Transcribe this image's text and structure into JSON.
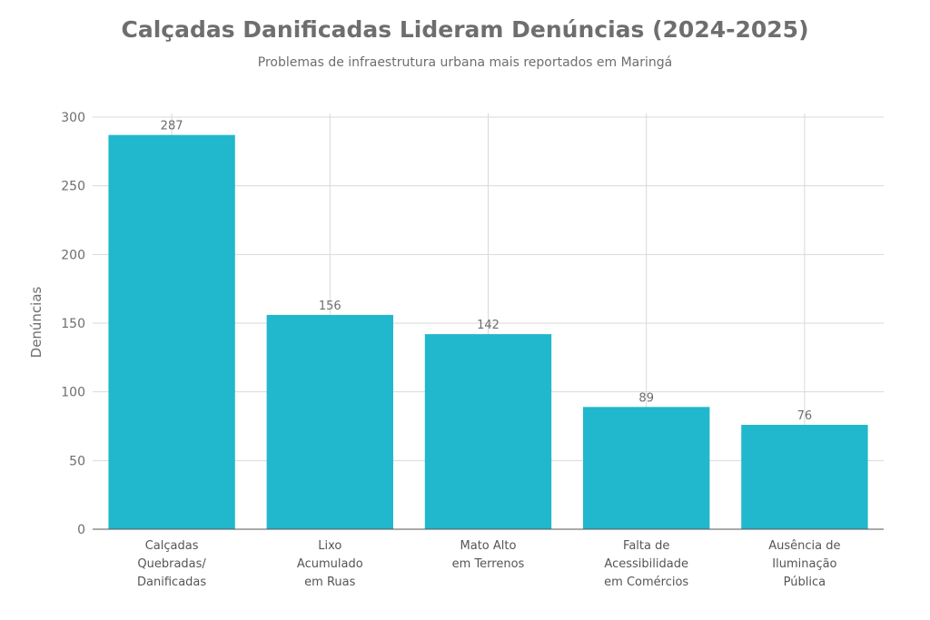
{
  "chart_data": {
    "type": "bar",
    "title": "Calçadas Danificadas Lideram Denúncias (2024-2025)",
    "subtitle": "Problemas de infraestrutura urbana mais reportados em Maringá",
    "ylabel": "Denúncias",
    "xlabel": "",
    "ylim": [
      0,
      300
    ],
    "yticks": [
      0,
      50,
      100,
      150,
      200,
      250,
      300
    ],
    "categories": [
      [
        "Calçadas",
        "Quebradas/",
        "Danificadas"
      ],
      [
        "Lixo",
        "Acumulado",
        "em Ruas"
      ],
      [
        "Mato Alto",
        "em Terrenos"
      ],
      [
        "Falta de",
        "Acessibilidade",
        "em Comércios"
      ],
      [
        "Ausência de",
        "Iluminação",
        "Pública"
      ]
    ],
    "values": [
      287,
      156,
      142,
      89,
      76
    ],
    "bar_color": "#21b7cc",
    "grid": true
  }
}
